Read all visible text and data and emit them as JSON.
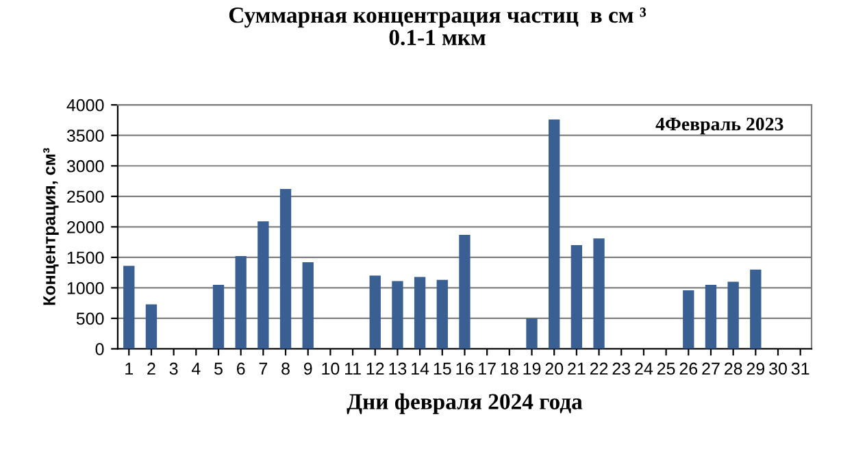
{
  "chart_data": {
    "type": "bar",
    "title": "Суммарная концентрация частиц  в см ³\n0.1-1 мкм",
    "xlabel": "Дни февраля 2024 года",
    "ylabel": "Концентрация, см³",
    "annotations": [
      "4Февраль 2023"
    ],
    "categories": [
      "1",
      "2",
      "3",
      "4",
      "5",
      "6",
      "7",
      "8",
      "9",
      "10",
      "11",
      "12",
      "13",
      "14",
      "15",
      "16",
      "17",
      "18",
      "19",
      "20",
      "21",
      "22",
      "23",
      "24",
      "25",
      "26",
      "27",
      "28",
      "29",
      "30",
      "31"
    ],
    "values": [
      1360,
      730,
      null,
      null,
      1050,
      1520,
      2090,
      2620,
      1420,
      null,
      null,
      1200,
      1110,
      1180,
      1130,
      1870,
      null,
      null,
      500,
      3760,
      1700,
      1810,
      null,
      null,
      null,
      960,
      1050,
      1100,
      1300,
      null,
      null
    ],
    "color": "#3a5f93",
    "ylim": [
      0,
      4000
    ],
    "yticks": [
      0,
      500,
      1000,
      1500,
      2000,
      2500,
      3000,
      3500,
      4000
    ],
    "grid": "y",
    "legend": false
  }
}
